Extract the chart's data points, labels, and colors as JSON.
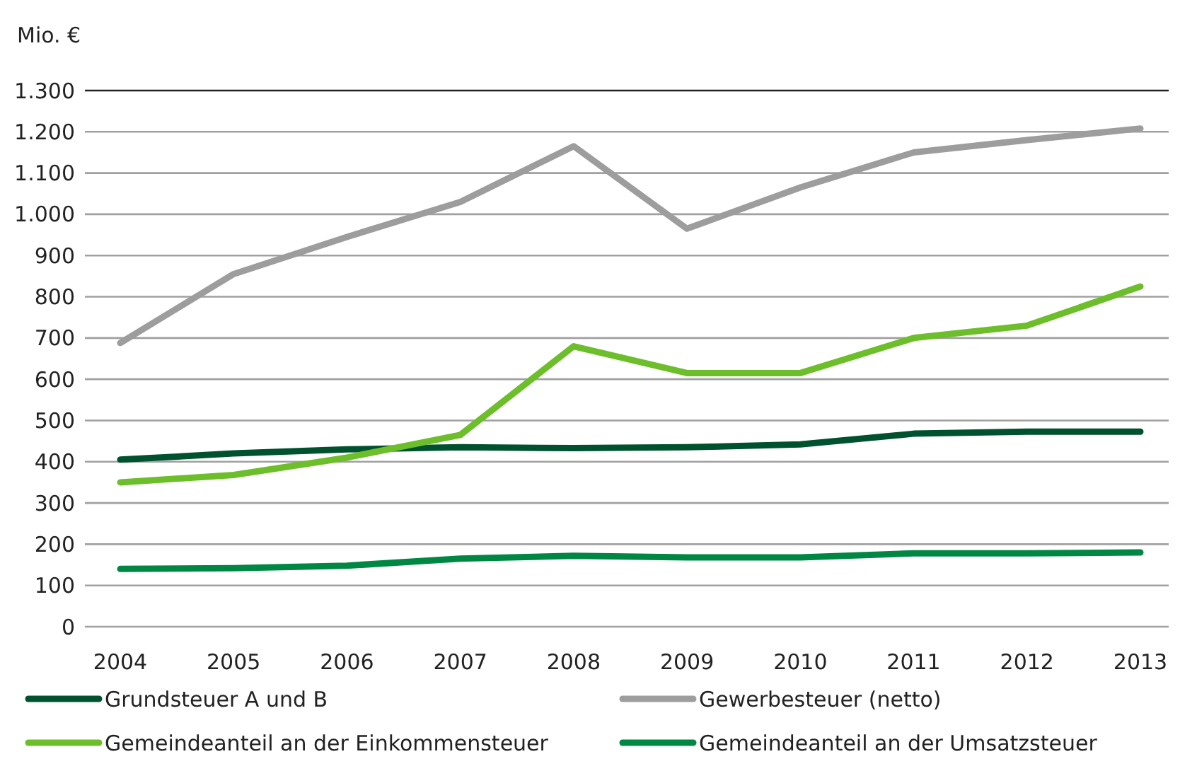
{
  "chart_data": {
    "type": "line",
    "ylabel": "Mio. €",
    "categories": [
      "2004",
      "2005",
      "2006",
      "2007",
      "2008",
      "2009",
      "2010",
      "2011",
      "2012",
      "2013"
    ],
    "series": [
      {
        "name": "Grundsteuer A und B",
        "color": "#00522f",
        "values": [
          405,
          420,
          430,
          435,
          433,
          435,
          442,
          468,
          473,
          473
        ]
      },
      {
        "name": "Gewerbesteuer (netto)",
        "color": "#9d9d9d",
        "values": [
          688,
          855,
          945,
          1030,
          1165,
          965,
          1065,
          1150,
          1180,
          1208
        ]
      },
      {
        "name": "Gemeindeanteil an der Einkommensteuer",
        "color": "#6cbe2a",
        "values": [
          350,
          368,
          410,
          465,
          680,
          615,
          615,
          700,
          730,
          825
        ]
      },
      {
        "name": "Gemeindeanteil an der Umsatzsteuer",
        "color": "#008744",
        "values": [
          140,
          142,
          148,
          165,
          172,
          168,
          168,
          178,
          178,
          180
        ]
      }
    ],
    "ylim": [
      0,
      1300
    ],
    "yticks": [
      0,
      {
        "value": 100,
        "label": "100"
      },
      200,
      300,
      400,
      500,
      600,
      700,
      800,
      900,
      {
        "value": 1000,
        "label": "1.000"
      },
      {
        "value": 1100,
        "label": "1.100"
      },
      {
        "value": 1200,
        "label": "1.200"
      },
      {
        "value": 1300,
        "label": "1.300"
      }
    ],
    "grid": "y",
    "legend": "bottom",
    "marker": "none",
    "line_style": "solid"
  }
}
